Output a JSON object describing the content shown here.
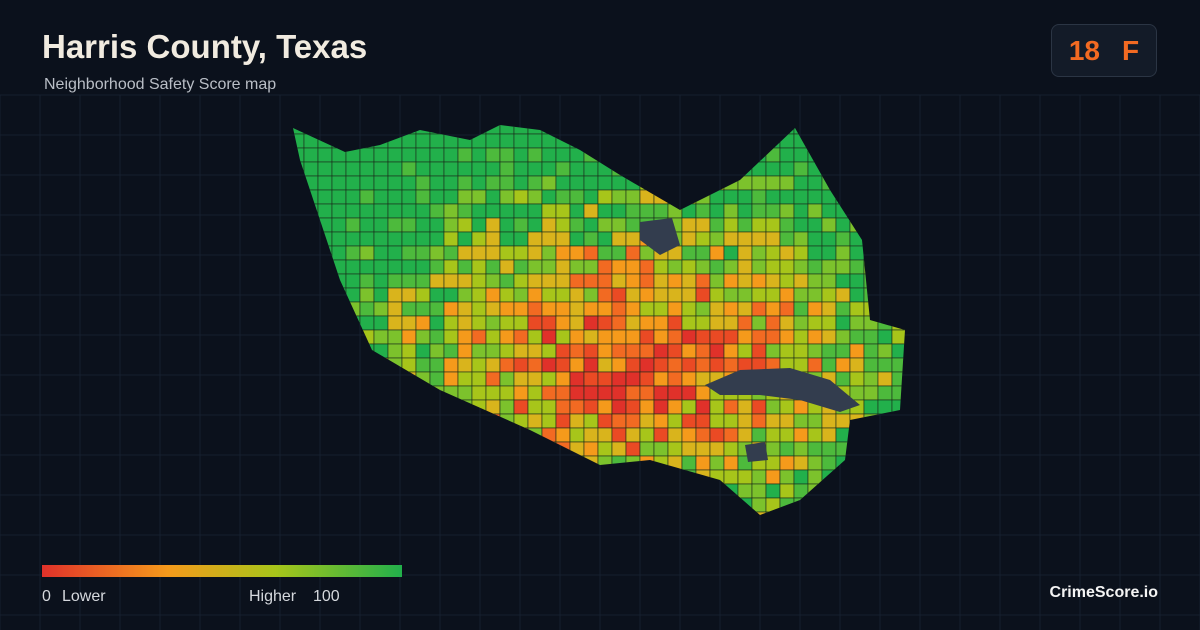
{
  "header": {
    "title": "Harris County, Texas",
    "subtitle": "Neighborhood Safety Score map"
  },
  "score": {
    "value": 18,
    "grade": "F"
  },
  "legend": {
    "min": 0,
    "min_label": "Lower",
    "max_label": "Higher",
    "max": 100
  },
  "brand": "CrimeScore.io"
}
